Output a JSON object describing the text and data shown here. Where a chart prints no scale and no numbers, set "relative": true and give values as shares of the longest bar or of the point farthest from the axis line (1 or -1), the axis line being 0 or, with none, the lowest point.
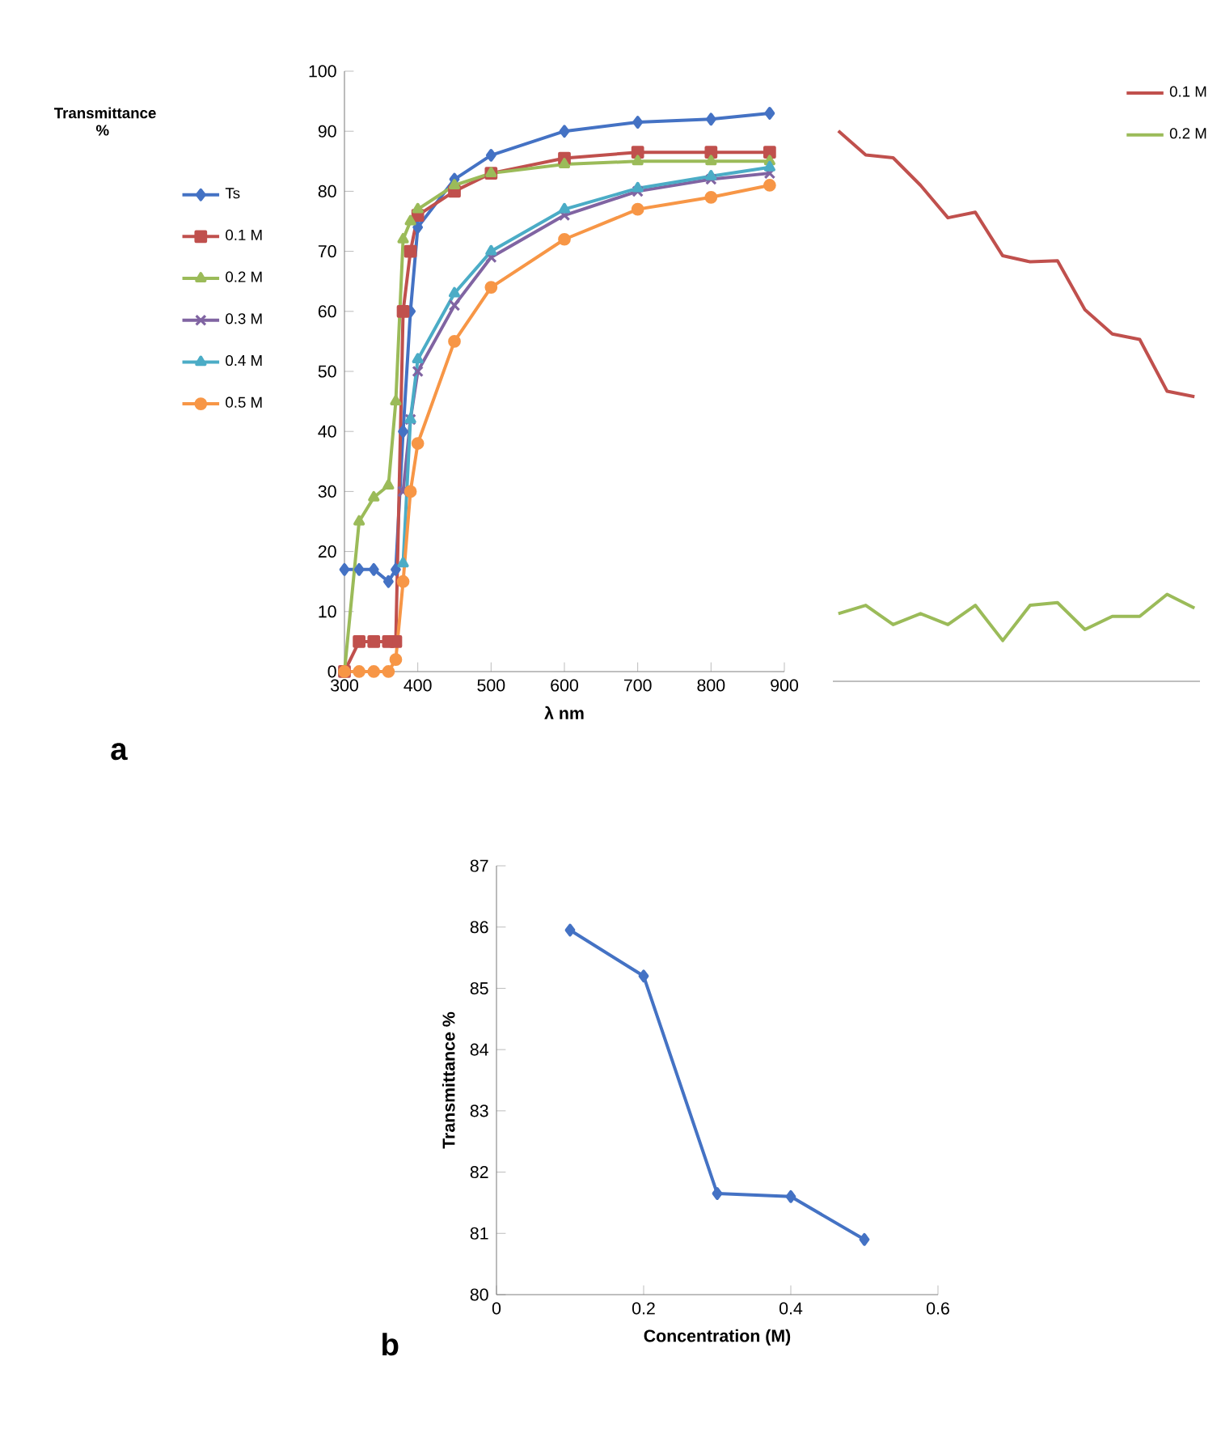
{
  "chart_data": [
    {
      "type": "line",
      "ylabel": "Transmittance %",
      "xlabel": "λ nm",
      "annotations": [
        "a"
      ],
      "x": [
        300,
        320,
        340,
        360,
        370,
        380,
        390,
        400,
        450,
        500,
        600,
        700,
        800,
        880
      ],
      "xlim": [
        300,
        900
      ],
      "xticks": [
        300,
        400,
        500,
        600,
        700,
        800,
        900
      ],
      "ylim": [
        0,
        100
      ],
      "yticks": [
        0,
        10,
        20,
        30,
        40,
        50,
        60,
        70,
        80,
        90,
        100
      ],
      "legend": "left",
      "series": [
        {
          "name": "Ts",
          "color": "#4472c4",
          "marker": "diamond",
          "values": [
            17,
            17,
            17,
            15,
            17,
            40,
            60,
            74,
            82,
            86,
            90,
            91.5,
            92,
            93
          ]
        },
        {
          "name": "0.1 M",
          "color": "#c0504d",
          "marker": "square",
          "values": [
            0,
            5,
            5,
            5,
            5,
            60,
            70,
            76,
            80,
            83,
            85.5,
            86.5,
            86.5,
            86.5
          ]
        },
        {
          "name": "0.2 M",
          "color": "#9bbb59",
          "marker": "triangle",
          "values": [
            0,
            25,
            29,
            31,
            45,
            72,
            75,
            77,
            81,
            83,
            84.5,
            85,
            85,
            85
          ]
        },
        {
          "name": "0.3 M",
          "color": "#8064a2",
          "marker": "cross",
          "values": [
            null,
            null,
            null,
            null,
            null,
            30,
            42,
            50,
            61,
            69,
            76,
            80,
            82,
            83
          ]
        },
        {
          "name": "0.4 M",
          "color": "#4bacc6",
          "marker": "triangle",
          "values": [
            null,
            null,
            null,
            null,
            null,
            18,
            42,
            52,
            63,
            70,
            77,
            80.5,
            82.5,
            84
          ]
        },
        {
          "name": "0.5 M",
          "color": "#f79646",
          "marker": "circle",
          "values": [
            0,
            0,
            0,
            0,
            2,
            15,
            30,
            38,
            55,
            64,
            72,
            77,
            79,
            81
          ]
        }
      ]
    },
    {
      "type": "line",
      "relative": true,
      "tick_labels": false,
      "legend": "top right",
      "categories": [
        null,
        null,
        null,
        null,
        null,
        null,
        null,
        null,
        null,
        null,
        null,
        null,
        null,
        null
      ],
      "series": [
        {
          "name": "0.1 M",
          "color": "#c0504d",
          "values": [
            1.0,
            0.956,
            0.951,
            0.901,
            0.842,
            0.852,
            0.773,
            0.762,
            0.764,
            0.675,
            0.631,
            0.621,
            0.527,
            0.517
          ]
        },
        {
          "name": "0.2 M",
          "color": "#9bbb59",
          "values": [
            0.123,
            0.138,
            0.103,
            0.123,
            0.103,
            0.138,
            0.074,
            0.138,
            0.143,
            0.094,
            0.118,
            0.118,
            0.158,
            0.133
          ]
        }
      ]
    },
    {
      "type": "line",
      "xlabel": "Concentration (M)",
      "ylabel": "Transmittance %",
      "annotations": [
        "b"
      ],
      "x": [
        0.1,
        0.2,
        0.3,
        0.4,
        0.5
      ],
      "values": [
        85.95,
        85.2,
        81.65,
        81.6,
        80.9
      ],
      "color": "#4472c4",
      "marker": "diamond",
      "xlim": [
        0,
        0.6
      ],
      "xticks": [
        0,
        0.2,
        0.4,
        0.6
      ],
      "ylim": [
        80,
        87
      ],
      "yticks": [
        80,
        81,
        82,
        83,
        84,
        85,
        86,
        87
      ]
    }
  ]
}
